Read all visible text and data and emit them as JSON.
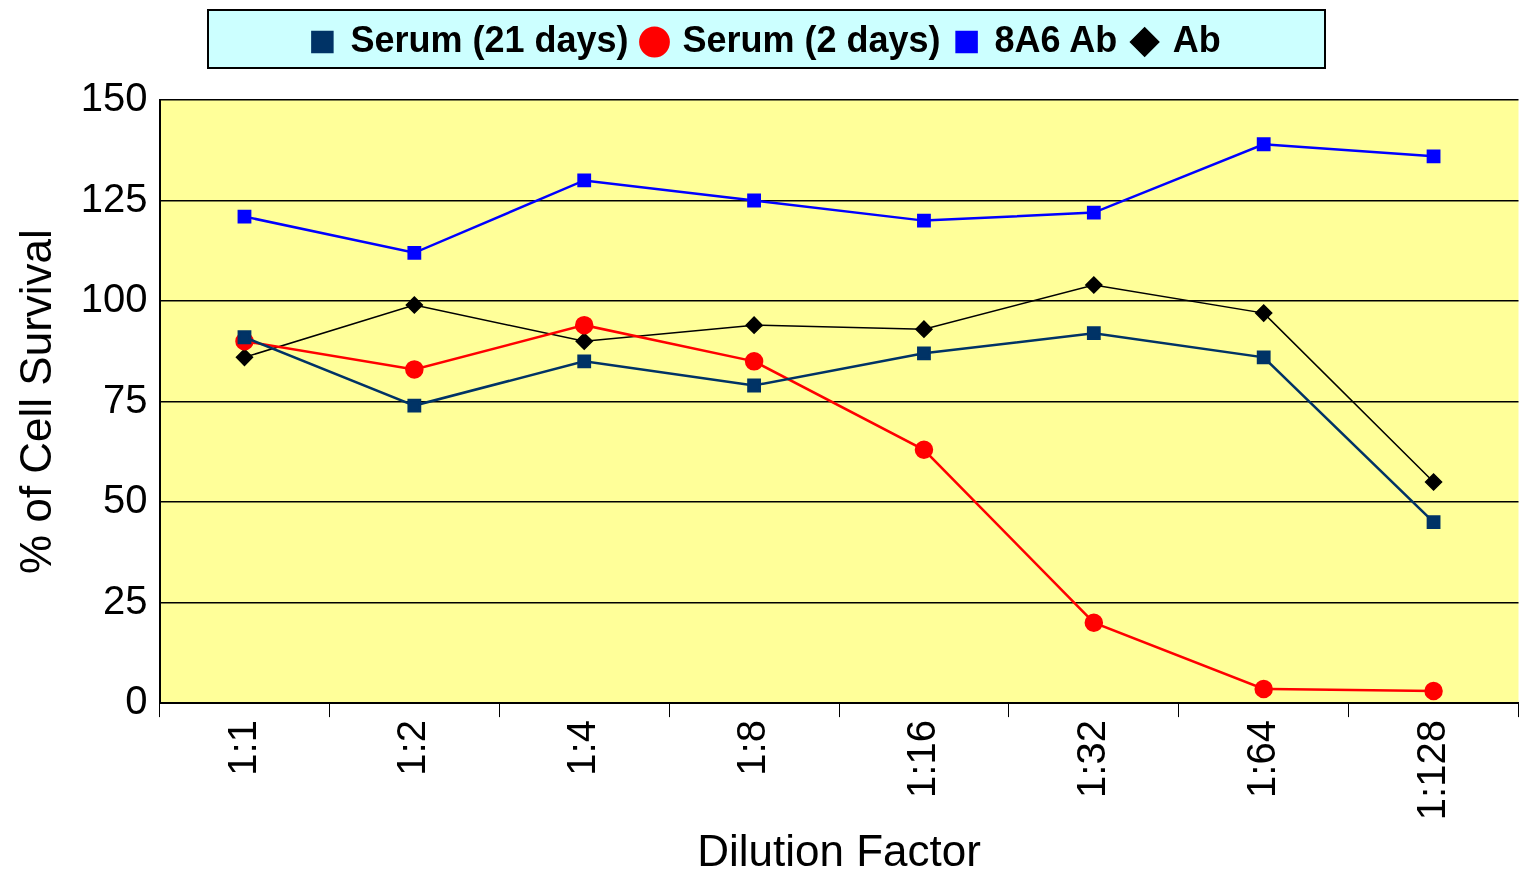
{
  "chart_data": {
    "type": "line",
    "xlabel": "Dilution Factor",
    "ylabel": "% of Cell Survival",
    "categories": [
      "1:1",
      "1:2",
      "1:4",
      "1:8",
      "1:16",
      "1:32",
      "1:64",
      "1:128"
    ],
    "series": [
      {
        "name": "Ab",
        "color": "#000000",
        "marker": "diamond",
        "values": [
          86,
          99,
          90,
          94,
          93,
          104,
          97,
          55
        ]
      },
      {
        "name": "8A6 Ab",
        "color": "#0000ff",
        "marker": "square",
        "values": [
          121,
          112,
          130,
          125,
          120,
          122,
          139,
          136
        ]
      },
      {
        "name": "Serum (2 days)",
        "color": "#ff0000",
        "marker": "circle",
        "values": [
          90,
          83,
          94,
          85,
          63,
          20,
          3.5,
          3
        ]
      },
      {
        "name": "Serum (21 days)",
        "color": "#003366",
        "marker": "square",
        "values": [
          91,
          74,
          85,
          79,
          87,
          92,
          86,
          45
        ]
      }
    ],
    "ylim": [
      0,
      150
    ],
    "yticks": [
      0,
      25,
      50,
      75,
      100,
      125,
      150
    ],
    "grid": "y",
    "legend": "top"
  }
}
